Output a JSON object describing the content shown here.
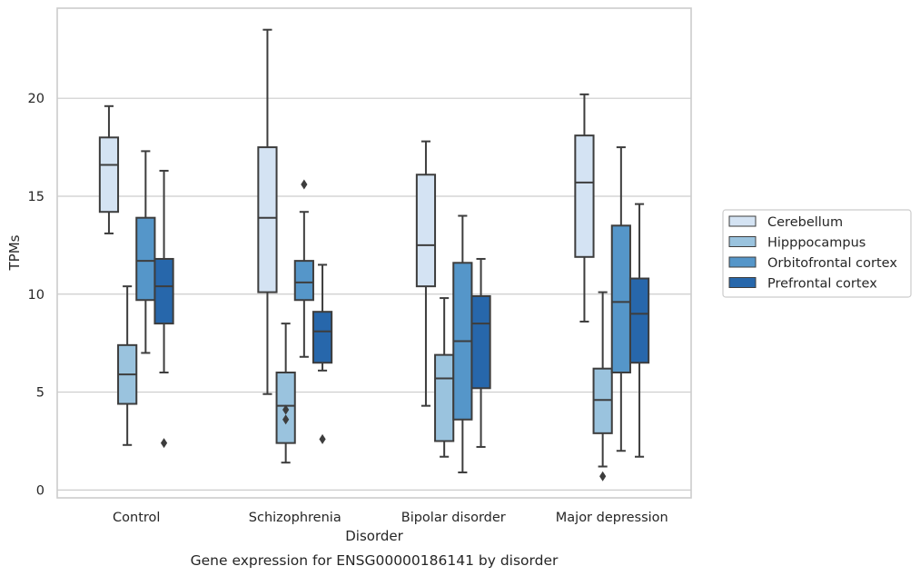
{
  "chart_data": {
    "type": "box",
    "title": "",
    "caption": "Gene expression for ENSG00000186141 by disorder",
    "xlabel": "Disorder",
    "ylabel": "TPMs",
    "ylim": [
      -0.4,
      24.6
    ],
    "yticks": [
      0,
      5,
      10,
      15,
      20
    ],
    "grid": true,
    "legend_position": "right",
    "categories": [
      "Control",
      "Schizophrenia",
      "Bipolar disorder",
      "Major depression"
    ],
    "series": [
      {
        "name": "Cerebellum",
        "color": "#d4e3f3",
        "boxes": [
          {
            "whisker_low": 13.1,
            "q1": 14.2,
            "median": 16.6,
            "q3": 18.0,
            "whisker_high": 19.6,
            "outliers": []
          },
          {
            "whisker_low": 4.9,
            "q1": 10.1,
            "median": 13.9,
            "q3": 17.5,
            "whisker_high": 23.5,
            "outliers": []
          },
          {
            "whisker_low": 4.3,
            "q1": 10.4,
            "median": 12.5,
            "q3": 16.1,
            "whisker_high": 17.8,
            "outliers": []
          },
          {
            "whisker_low": 8.6,
            "q1": 11.9,
            "median": 15.7,
            "q3": 18.1,
            "whisker_high": 20.2,
            "outliers": []
          }
        ]
      },
      {
        "name": "Hipppocampus",
        "color": "#9ac3de",
        "boxes": [
          {
            "whisker_low": 2.3,
            "q1": 4.4,
            "median": 5.9,
            "q3": 7.4,
            "whisker_high": 10.4,
            "outliers": []
          },
          {
            "whisker_low": 1.4,
            "q1": 2.4,
            "median": 4.3,
            "q3": 6.0,
            "whisker_high": 8.5,
            "outliers": [
              4.1,
              3.6
            ]
          },
          {
            "whisker_low": 1.7,
            "q1": 2.5,
            "median": 5.7,
            "q3": 6.9,
            "whisker_high": 9.8,
            "outliers": []
          },
          {
            "whisker_low": 1.2,
            "q1": 2.9,
            "median": 4.6,
            "q3": 6.2,
            "whisker_high": 10.1,
            "outliers": [
              0.7
            ]
          }
        ]
      },
      {
        "name": "Orbitofrontal cortex",
        "color": "#5596c9",
        "boxes": [
          {
            "whisker_low": 7.0,
            "q1": 9.7,
            "median": 11.7,
            "q3": 13.9,
            "whisker_high": 17.3,
            "outliers": []
          },
          {
            "whisker_low": 6.8,
            "q1": 9.7,
            "median": 10.6,
            "q3": 11.7,
            "whisker_high": 14.2,
            "outliers": [
              15.6
            ]
          },
          {
            "whisker_low": 0.9,
            "q1": 3.6,
            "median": 7.6,
            "q3": 11.6,
            "whisker_high": 14.0,
            "outliers": []
          },
          {
            "whisker_low": 2.0,
            "q1": 6.0,
            "median": 9.6,
            "q3": 13.5,
            "whisker_high": 17.5,
            "outliers": []
          }
        ]
      },
      {
        "name": "Prefrontal cortex",
        "color": "#2767ab",
        "boxes": [
          {
            "whisker_low": 6.0,
            "q1": 8.5,
            "median": 10.4,
            "q3": 11.8,
            "whisker_high": 16.3,
            "outliers": [
              2.4
            ]
          },
          {
            "whisker_low": 6.1,
            "q1": 6.5,
            "median": 8.1,
            "q3": 9.1,
            "whisker_high": 11.5,
            "outliers": [
              2.6
            ]
          },
          {
            "whisker_low": 2.2,
            "q1": 5.2,
            "median": 8.5,
            "q3": 9.9,
            "whisker_high": 11.8,
            "outliers": []
          },
          {
            "whisker_low": 1.7,
            "q1": 6.5,
            "median": 9.0,
            "q3": 10.8,
            "whisker_high": 14.6,
            "outliers": []
          }
        ]
      }
    ]
  }
}
